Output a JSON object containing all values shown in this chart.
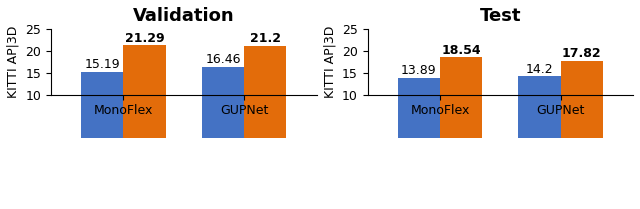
{
  "charts": [
    {
      "title": "Validation",
      "title_bold": true,
      "categories": [
        "MonoFlex",
        "GUPNet"
      ],
      "blue_values": [
        15.19,
        16.46
      ],
      "orange_values": [
        21.29,
        21.2
      ],
      "blue_labels": [
        "15.19",
        "16.46"
      ],
      "orange_labels": [
        "21.29",
        "21.2"
      ],
      "orange_bold": true,
      "ylim": [
        10,
        25
      ],
      "yticks": [
        10,
        15,
        20,
        25
      ],
      "ylabel": "KITTI AP|3D"
    },
    {
      "title": "Test",
      "title_bold": false,
      "categories": [
        "MonoFlex",
        "GUPNet"
      ],
      "blue_values": [
        13.89,
        14.2
      ],
      "orange_values": [
        18.54,
        17.82
      ],
      "blue_labels": [
        "13.89",
        "14.2"
      ],
      "orange_labels": [
        "18.54",
        "17.82"
      ],
      "orange_bold": true,
      "ylim": [
        10,
        25
      ],
      "yticks": [
        10,
        15,
        20,
        25
      ],
      "ylabel": "KITTI AP|3D"
    }
  ],
  "blue_color": "#4472C4",
  "orange_color": "#E36C0A",
  "bar_width": 0.35,
  "label_fontsize": 9,
  "title_fontsize": 13,
  "axis_fontsize": 9,
  "tick_fontsize": 9
}
